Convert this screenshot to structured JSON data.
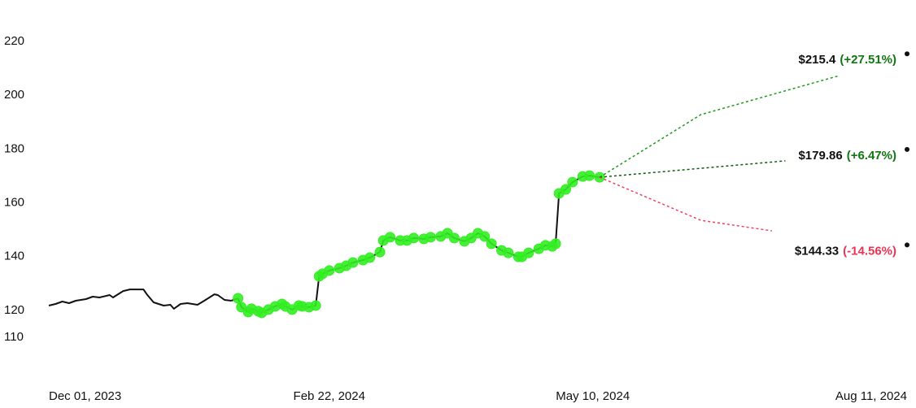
{
  "chart_data": {
    "type": "line",
    "xlim": [
      "2023-12-01",
      "2024-08-11"
    ],
    "xticks": [
      {
        "value": "2023-12-01",
        "label": "Dec 01, 2023"
      },
      {
        "value": "2024-02-22",
        "label": "Feb 22, 2024"
      },
      {
        "value": "2024-05-10",
        "label": "May 10, 2024"
      },
      {
        "value": "2024-08-11",
        "label": "Aug 11, 2024"
      }
    ],
    "ylim": [
      110,
      220
    ],
    "yticks": [
      110,
      120,
      140,
      160,
      180,
      200,
      220
    ],
    "series": [
      {
        "color": "#111111",
        "x": [
          "2023-12-01",
          "2023-12-03",
          "2023-12-05",
          "2023-12-07",
          "2023-12-09",
          "2023-12-12",
          "2023-12-14",
          "2023-12-16",
          "2023-12-19",
          "2023-12-20",
          "2023-12-23",
          "2023-12-25",
          "2023-12-29",
          "2023-12-30",
          "2024-01-01",
          "2024-01-04",
          "2024-01-06",
          "2024-01-07",
          "2024-01-09",
          "2024-01-11",
          "2024-01-14",
          "2024-01-16",
          "2024-01-19",
          "2024-01-20",
          "2024-01-22",
          "2024-01-24"
        ],
        "values": [
          121.8,
          122.4,
          123.3,
          122.7,
          123.6,
          124.2,
          125.1,
          124.8,
          125.7,
          124.8,
          127.2,
          127.8,
          127.8,
          126.0,
          123.0,
          121.8,
          122.1,
          120.6,
          122.4,
          122.7,
          122.1,
          123.6,
          126.0,
          125.7,
          123.9,
          123.6
        ]
      },
      {
        "color": "#111111",
        "marker_color": "#33ee22",
        "x": [
          "2024-01-26",
          "2024-01-27",
          "2024-01-29",
          "2024-01-30",
          "2024-02-01",
          "2024-02-02",
          "2024-02-04",
          "2024-02-06",
          "2024-02-08",
          "2024-02-09",
          "2024-02-11",
          "2024-02-13",
          "2024-02-14",
          "2024-02-16",
          "2024-02-18",
          "2024-02-19",
          "2024-02-20",
          "2024-02-22",
          "2024-02-25",
          "2024-02-27",
          "2024-02-29",
          "2024-03-03",
          "2024-03-05",
          "2024-03-08",
          "2024-03-09",
          "2024-03-11",
          "2024-03-14",
          "2024-03-16",
          "2024-03-18",
          "2024-03-21",
          "2024-03-23",
          "2024-03-26",
          "2024-03-28",
          "2024-03-30",
          "2024-04-02",
          "2024-04-04",
          "2024-04-06",
          "2024-04-08",
          "2024-04-10",
          "2024-04-13",
          "2024-04-15",
          "2024-04-18",
          "2024-04-19",
          "2024-04-21",
          "2024-04-24",
          "2024-04-26",
          "2024-04-28",
          "2024-04-29",
          "2024-04-30",
          "2024-05-02",
          "2024-05-04",
          "2024-05-07",
          "2024-05-09",
          "2024-05-12"
        ],
        "values": [
          124.5,
          121.2,
          119.4,
          120.6,
          119.7,
          119.1,
          120.3,
          121.5,
          122.4,
          121.5,
          120.3,
          121.8,
          121.5,
          121.2,
          121.8,
          132.7,
          133.6,
          134.8,
          135.7,
          136.6,
          137.8,
          138.7,
          139.6,
          141.7,
          146.0,
          147.2,
          146.0,
          146.0,
          146.9,
          146.6,
          147.2,
          147.5,
          148.7,
          146.9,
          145.7,
          146.9,
          148.7,
          147.5,
          144.8,
          142.3,
          141.4,
          139.9,
          139.9,
          141.4,
          142.9,
          144.2,
          143.8,
          144.8,
          163.5,
          165.0,
          167.7,
          169.8,
          170.1,
          169.5
        ]
      }
    ],
    "forecasts": [
      {
        "color": "#1a9a1a",
        "x": [
          "2024-05-12",
          "2024-06-11",
          "2024-07-22"
        ],
        "values": [
          169.5,
          192.8,
          207.3
        ]
      },
      {
        "color": "#0b5e0b",
        "x": [
          "2024-05-12",
          "2024-07-06"
        ],
        "values": [
          169.5,
          175.6
        ]
      },
      {
        "color": "#ee4060",
        "x": [
          "2024-05-12",
          "2024-06-11",
          "2024-07-02"
        ],
        "values": [
          169.5,
          153.5,
          149.6
        ]
      }
    ],
    "targets": [
      {
        "x": "2024-08-11",
        "value": 215.4,
        "value_label": "$215.4",
        "change_label": "(+27.51%)",
        "change_color": "#117711"
      },
      {
        "x": "2024-08-11",
        "value": 179.86,
        "value_label": "$179.86",
        "change_label": "(+6.47%)",
        "change_color": "#117711"
      },
      {
        "x": "2024-08-11",
        "value": 144.33,
        "value_label": "$144.33",
        "change_label": "(-14.56%)",
        "change_color": "#ee3355"
      }
    ]
  }
}
